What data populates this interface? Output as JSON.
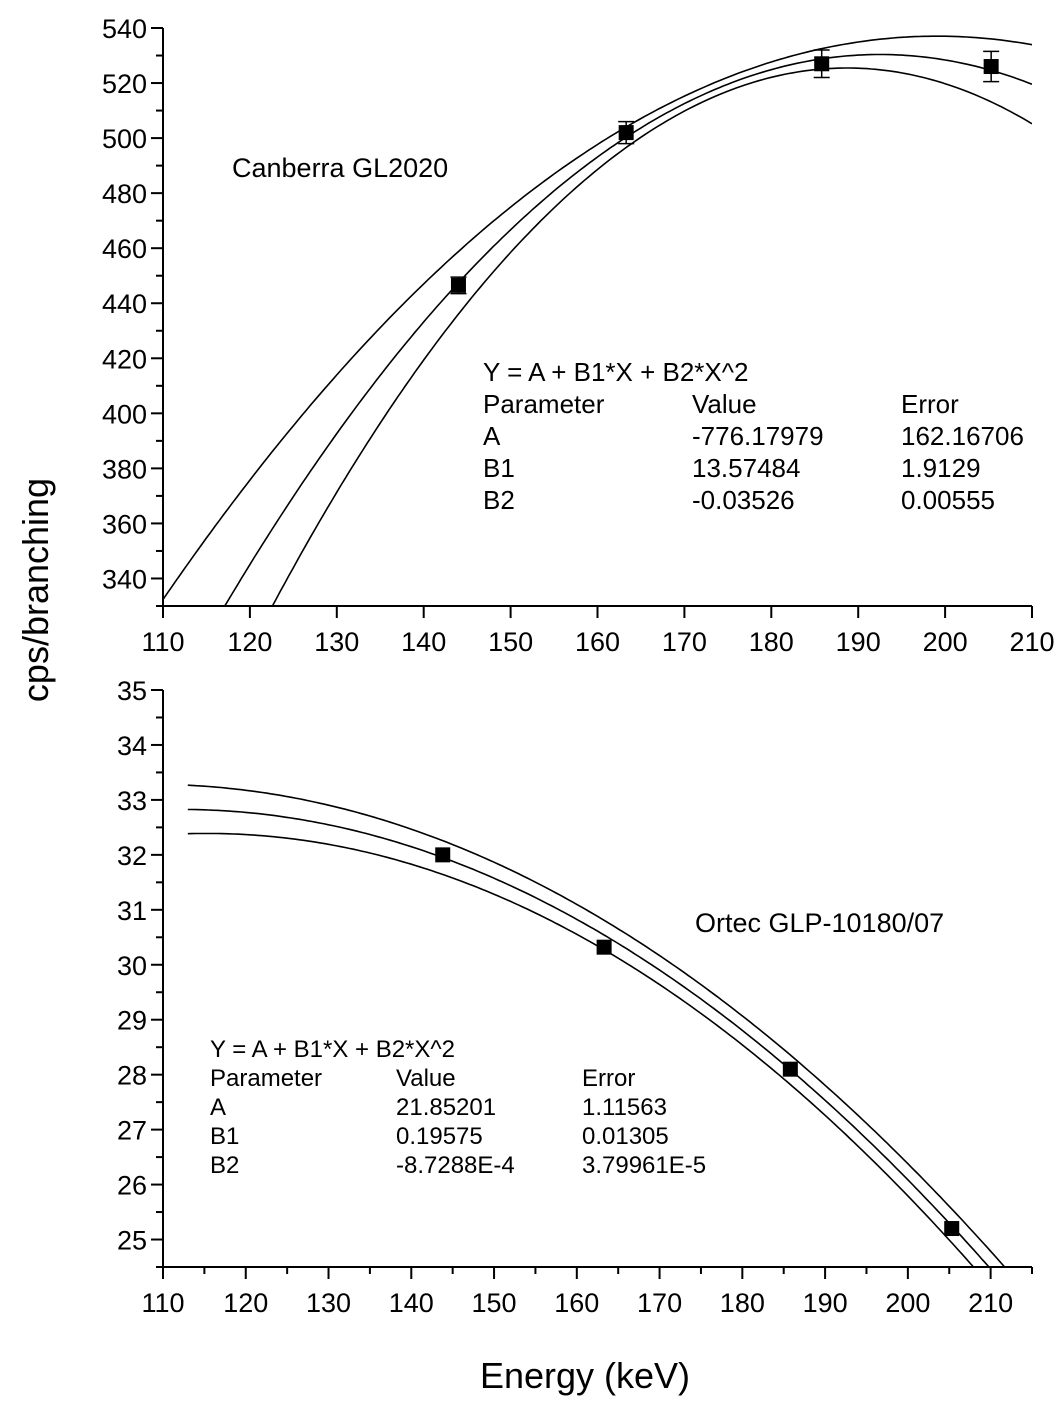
{
  "ylabel": "cps/branching",
  "xlabel": "Energy (keV)",
  "chart_data": [
    {
      "type": "scatter",
      "annotation": "Canberra GL2020",
      "xlim": [
        110,
        210
      ],
      "ylim": [
        330,
        540
      ],
      "x_ticks": [
        110,
        120,
        130,
        140,
        150,
        160,
        170,
        180,
        190,
        200,
        210
      ],
      "y_ticks": [
        340,
        360,
        380,
        400,
        420,
        440,
        460,
        480,
        500,
        520,
        540
      ],
      "points": [
        {
          "x": 144.0,
          "y": 446.5,
          "err": 3.0
        },
        {
          "x": 163.3,
          "y": 502.0,
          "err": 4.0
        },
        {
          "x": 185.8,
          "y": 527.0,
          "err": 5.0
        },
        {
          "x": 205.3,
          "y": 526.0,
          "err": 5.5
        }
      ],
      "fit": {
        "A": -776.17979,
        "B1": 13.57484,
        "B2": -0.03526
      },
      "confidence_band": true,
      "fit_table": {
        "equation": "Y = A + B1*X + B2*X^2",
        "header": [
          "Parameter",
          "Value",
          "Error"
        ],
        "rows": [
          [
            "A",
            "-776.17979",
            "162.16706"
          ],
          [
            "B1",
            "13.57484",
            "1.9129"
          ],
          [
            "B2",
            "-0.03526",
            "0.00555"
          ]
        ]
      }
    },
    {
      "type": "scatter",
      "annotation": "Ortec GLP-10180/07",
      "xlim": [
        110,
        215
      ],
      "ylim": [
        24.5,
        35
      ],
      "x_ticks": [
        110,
        120,
        130,
        140,
        150,
        160,
        170,
        180,
        190,
        200,
        210
      ],
      "y_ticks": [
        25,
        26,
        27,
        28,
        29,
        30,
        31,
        32,
        33,
        34,
        35
      ],
      "points": [
        {
          "x": 143.8,
          "y": 32.0
        },
        {
          "x": 163.3,
          "y": 30.32
        },
        {
          "x": 185.8,
          "y": 28.1
        },
        {
          "x": 205.3,
          "y": 25.2
        }
      ],
      "fit": {
        "A": 21.85201,
        "B1": 0.19575,
        "B2": -0.00087288
      },
      "confidence_band": true,
      "fit_table": {
        "equation": "Y = A + B1*X + B2*X^2",
        "header": [
          "Parameter",
          "Value",
          "Error"
        ],
        "rows": [
          [
            "A",
            "21.85201",
            "1.11563"
          ],
          [
            "B1",
            "0.19575",
            "0.01305"
          ],
          [
            "B2",
            "-8.7288E-4",
            "3.79961E-5"
          ]
        ]
      }
    }
  ]
}
